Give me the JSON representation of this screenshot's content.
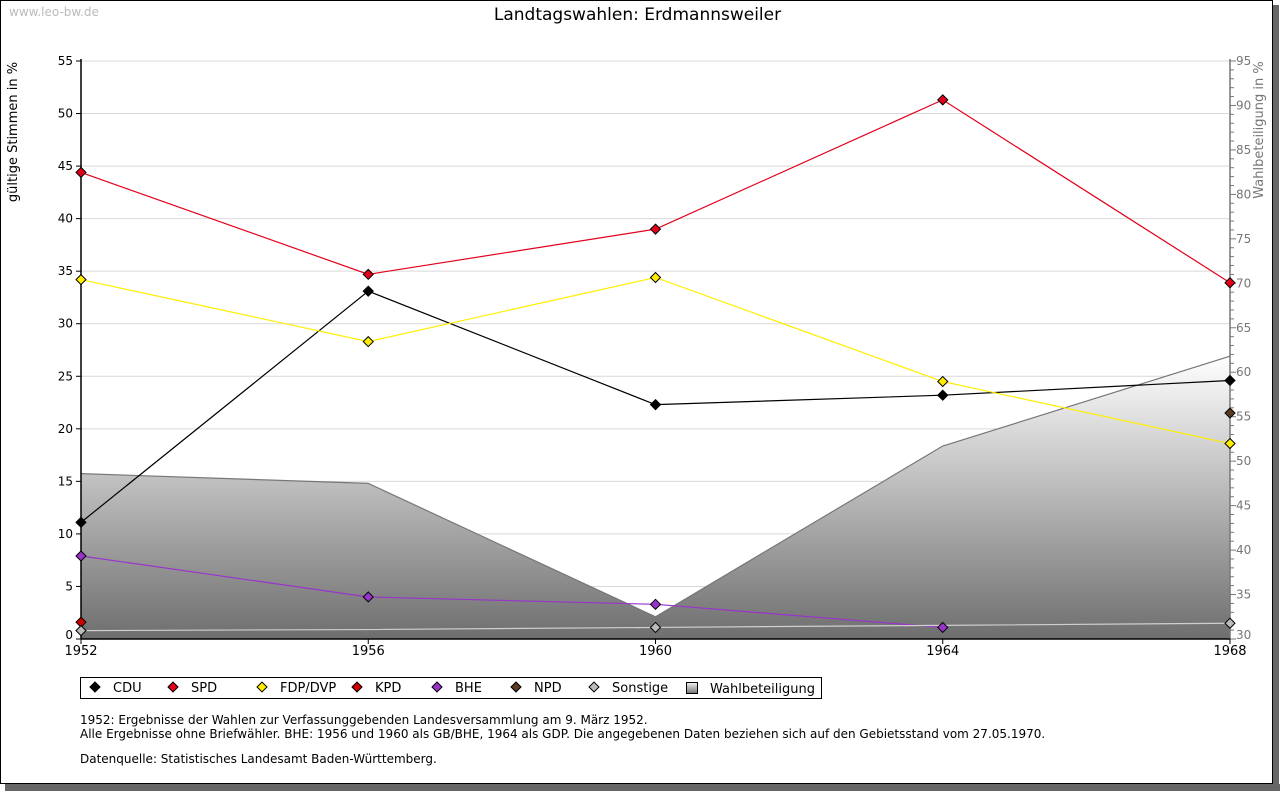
{
  "watermark": "www.leo-bw.de",
  "chart_data": {
    "type": "line",
    "title": "Landtagswahlen: Erdmannsweiler",
    "ylabel": "gültige Stimmen in %",
    "ylabel_right": "Wahlbeteiligung in %",
    "x": [
      "1952",
      "1956",
      "1960",
      "1964",
      "1968"
    ],
    "ylim": [
      0,
      55
    ],
    "ylim_right": [
      30,
      95
    ],
    "yticks": [
      "0",
      "5",
      "10",
      "15",
      "20",
      "25",
      "30",
      "35",
      "40",
      "45",
      "50",
      "55"
    ],
    "yticks_right": [
      "30",
      "35",
      "40",
      "45",
      "50",
      "55",
      "60",
      "65",
      "70",
      "75",
      "80",
      "85",
      "90",
      "95"
    ],
    "grid": true,
    "series": [
      {
        "name": "CDU",
        "color": "#000000",
        "values": [
          11.1,
          33.1,
          22.3,
          23.2,
          24.6
        ]
      },
      {
        "name": "SPD",
        "color": "#e3001b",
        "values": [
          44.4,
          34.7,
          39.0,
          51.3,
          33.9
        ]
      },
      {
        "name": "FDP/DVP",
        "color": "#ffee00",
        "values": [
          34.2,
          28.3,
          34.4,
          24.5,
          18.6
        ]
      },
      {
        "name": "KPD",
        "color": "#cc0000",
        "values": [
          1.6,
          null,
          null,
          null,
          null
        ]
      },
      {
        "name": "BHE",
        "color": "#9933cc",
        "values": [
          7.9,
          4.0,
          3.3,
          1.1,
          null
        ]
      },
      {
        "name": "NPD",
        "color": "#5a3a22",
        "values": [
          null,
          null,
          null,
          null,
          21.5
        ]
      },
      {
        "name": "Sonstige",
        "color": "#bbbbbb",
        "values": [
          0.8,
          0.9,
          1.1,
          1.3,
          1.5
        ],
        "markers": [
          true,
          false,
          true,
          false,
          true
        ]
      }
    ],
    "area": {
      "name": "Wahlbeteiligung",
      "axis": "right",
      "values": [
        48.6,
        47.5,
        32.5,
        51.7,
        61.8
      ]
    },
    "legend": [
      "CDU",
      "SPD",
      "FDP/DVP",
      "KPD",
      "BHE",
      "NPD",
      "Sonstige",
      "Wahlbeteiligung"
    ],
    "legend_position": "bottom-left"
  },
  "notes": [
    "1952: Ergebnisse der Wahlen zur Verfassunggebenden Landesversammlung am 9. März 1952.",
    "Alle Ergebnisse ohne Briefwähler. BHE: 1956 und 1960 als GB/BHE, 1964 als GDP. Die angegebenen Daten beziehen sich auf den Gebietsstand vom 27.05.1970."
  ],
  "source": "Datenquelle: Statistisches Landesamt Baden-Württemberg."
}
